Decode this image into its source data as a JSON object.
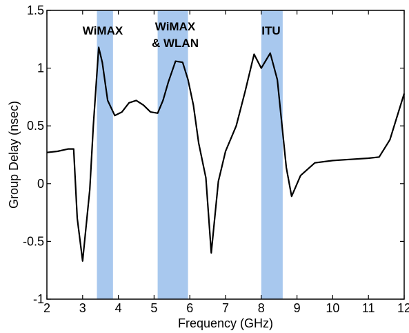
{
  "chart_data": {
    "type": "line",
    "title": "",
    "xlabel": "Frequency (GHz)",
    "ylabel": "Group Delay (nsec)",
    "xlim": [
      2,
      12
    ],
    "ylim": [
      -1,
      1.5
    ],
    "grid": false,
    "xticks": [
      2,
      3,
      4,
      5,
      6,
      7,
      8,
      9,
      10,
      11,
      12
    ],
    "yticks": [
      -1,
      -0.5,
      0,
      0.5,
      1,
      1.5
    ],
    "xtick_labels": [
      "2",
      "3",
      "4",
      "5",
      "6",
      "7",
      "8",
      "9",
      "10",
      "11",
      "12"
    ],
    "ytick_labels": [
      "-1",
      "-0.5",
      "0",
      "0.5",
      "1",
      "1.5"
    ],
    "bands": [
      {
        "label_lines": [
          "WiMAX"
        ],
        "x_start": 3.4,
        "x_end": 3.85,
        "color": "#a8c8ee"
      },
      {
        "label_lines": [
          "WiMAX",
          "& WLAN"
        ],
        "x_start": 5.1,
        "x_end": 5.95,
        "color": "#a8c8ee"
      },
      {
        "label_lines": [
          "ITU"
        ],
        "x_start": 8.0,
        "x_end": 8.6,
        "color": "#a8c8ee"
      }
    ],
    "series": [
      {
        "color": "#000000",
        "x": [
          2.0,
          2.3,
          2.6,
          2.75,
          2.85,
          3.0,
          3.2,
          3.3,
          3.45,
          3.55,
          3.7,
          3.9,
          4.1,
          4.3,
          4.5,
          4.7,
          4.9,
          5.1,
          5.25,
          5.4,
          5.6,
          5.8,
          5.95,
          6.1,
          6.25,
          6.45,
          6.6,
          6.8,
          7.0,
          7.3,
          7.55,
          7.8,
          8.0,
          8.25,
          8.45,
          8.7,
          8.85,
          9.1,
          9.5,
          10.0,
          10.5,
          11.0,
          11.3,
          11.6,
          12.0
        ],
        "y": [
          0.27,
          0.28,
          0.3,
          0.3,
          -0.3,
          -0.67,
          -0.05,
          0.5,
          1.18,
          1.05,
          0.72,
          0.59,
          0.62,
          0.7,
          0.72,
          0.68,
          0.62,
          0.61,
          0.72,
          0.88,
          1.06,
          1.05,
          0.9,
          0.68,
          0.35,
          0.05,
          -0.6,
          0.02,
          0.28,
          0.5,
          0.8,
          1.12,
          1.0,
          1.13,
          0.9,
          0.14,
          -0.11,
          0.07,
          0.18,
          0.2,
          0.21,
          0.22,
          0.23,
          0.38,
          0.78
        ]
      }
    ]
  }
}
